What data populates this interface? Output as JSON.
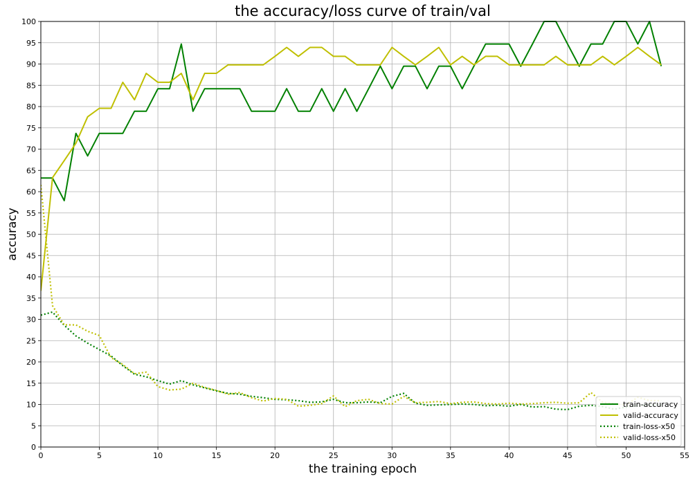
{
  "chart_data": {
    "type": "line",
    "title": "the accuracy/loss curve of train/val",
    "xlabel": "the training epoch",
    "ylabel": "accuracy",
    "xlim": [
      0,
      55
    ],
    "ylim": [
      0,
      100
    ],
    "xticks": [
      0,
      5,
      10,
      15,
      20,
      25,
      30,
      35,
      40,
      45,
      50,
      55
    ],
    "yticks": [
      0,
      5,
      10,
      15,
      20,
      25,
      30,
      35,
      40,
      45,
      50,
      55,
      60,
      65,
      70,
      75,
      80,
      85,
      90,
      95,
      100
    ],
    "grid": true,
    "legend_position": "lower-right",
    "x": [
      0,
      1,
      2,
      3,
      4,
      5,
      6,
      7,
      8,
      9,
      10,
      11,
      12,
      13,
      14,
      15,
      16,
      17,
      18,
      19,
      20,
      21,
      22,
      23,
      24,
      25,
      26,
      27,
      28,
      29,
      30,
      31,
      32,
      33,
      34,
      35,
      36,
      37,
      38,
      39,
      40,
      41,
      42,
      43,
      44,
      45,
      46,
      47,
      48,
      49,
      50,
      51,
      52,
      53
    ],
    "series": [
      {
        "name": "train-accuracy",
        "color": "#008000",
        "style": "solid",
        "values": [
          63.2,
          63.2,
          57.9,
          73.7,
          68.4,
          73.7,
          73.7,
          73.7,
          78.9,
          78.9,
          84.2,
          84.2,
          94.7,
          78.9,
          84.2,
          84.2,
          84.2,
          84.2,
          78.9,
          78.9,
          78.9,
          84.2,
          78.9,
          78.9,
          84.2,
          78.9,
          84.2,
          78.9,
          84.2,
          89.5,
          84.2,
          89.5,
          89.5,
          84.2,
          89.5,
          89.5,
          84.2,
          89.5,
          94.7,
          94.7,
          94.7,
          89.5,
          94.7,
          100,
          100,
          94.7,
          89.5,
          94.7,
          94.7,
          100,
          100,
          94.7,
          100,
          89.5
        ]
      },
      {
        "name": "valid-accuracy",
        "color": "#bfbf00",
        "style": "solid",
        "values": [
          36.7,
          63.3,
          67.3,
          71.4,
          77.6,
          79.6,
          79.6,
          85.7,
          81.6,
          87.8,
          85.7,
          85.7,
          87.8,
          81.6,
          87.8,
          87.8,
          89.8,
          89.8,
          89.8,
          89.8,
          91.8,
          93.9,
          91.8,
          93.9,
          93.9,
          91.8,
          91.8,
          89.8,
          89.8,
          89.8,
          93.9,
          91.8,
          89.8,
          91.8,
          93.9,
          89.8,
          91.8,
          89.8,
          91.8,
          91.8,
          89.8,
          89.8,
          89.8,
          89.8,
          91.8,
          89.8,
          89.8,
          89.8,
          91.8,
          89.8,
          91.8,
          93.9,
          91.8,
          89.8
        ]
      },
      {
        "name": "train-loss-x50",
        "color": "#008000",
        "style": "dotted",
        "values": [
          31.0,
          31.7,
          28.6,
          26.1,
          24.4,
          22.9,
          21.4,
          19.1,
          17.1,
          16.5,
          15.6,
          14.8,
          15.6,
          14.6,
          13.9,
          13.2,
          12.6,
          12.4,
          11.9,
          11.6,
          11.2,
          11.1,
          10.9,
          10.5,
          10.6,
          11.2,
          10.4,
          10.4,
          10.6,
          10.4,
          11.9,
          12.6,
          10.3,
          9.8,
          9.9,
          10.0,
          10.1,
          10.0,
          9.7,
          9.8,
          9.6,
          10.0,
          9.4,
          9.5,
          8.9,
          8.8,
          9.6,
          9.8,
          9.5,
          8.9,
          9.4,
          9.8,
          9.9,
          9.9
        ]
      },
      {
        "name": "valid-loss-x50",
        "color": "#bfbf00",
        "style": "dotted",
        "values": [
          61.6,
          33.2,
          28.7,
          28.7,
          27.2,
          26.2,
          21.0,
          19.4,
          17.2,
          17.6,
          14.2,
          13.4,
          13.6,
          15.0,
          14.0,
          13.3,
          12.4,
          12.8,
          11.6,
          10.8,
          11.4,
          11.2,
          9.6,
          9.8,
          10.2,
          12.0,
          9.5,
          10.9,
          11.2,
          10.2,
          10.1,
          11.9,
          10.4,
          10.5,
          10.7,
          10.2,
          10.5,
          10.6,
          10.2,
          10.1,
          10.3,
          10.1,
          10.2,
          10.4,
          10.5,
          10.3,
          10.4,
          12.8,
          10.5,
          10.2,
          9.9,
          11.7,
          10.9,
          10.9
        ]
      }
    ]
  }
}
